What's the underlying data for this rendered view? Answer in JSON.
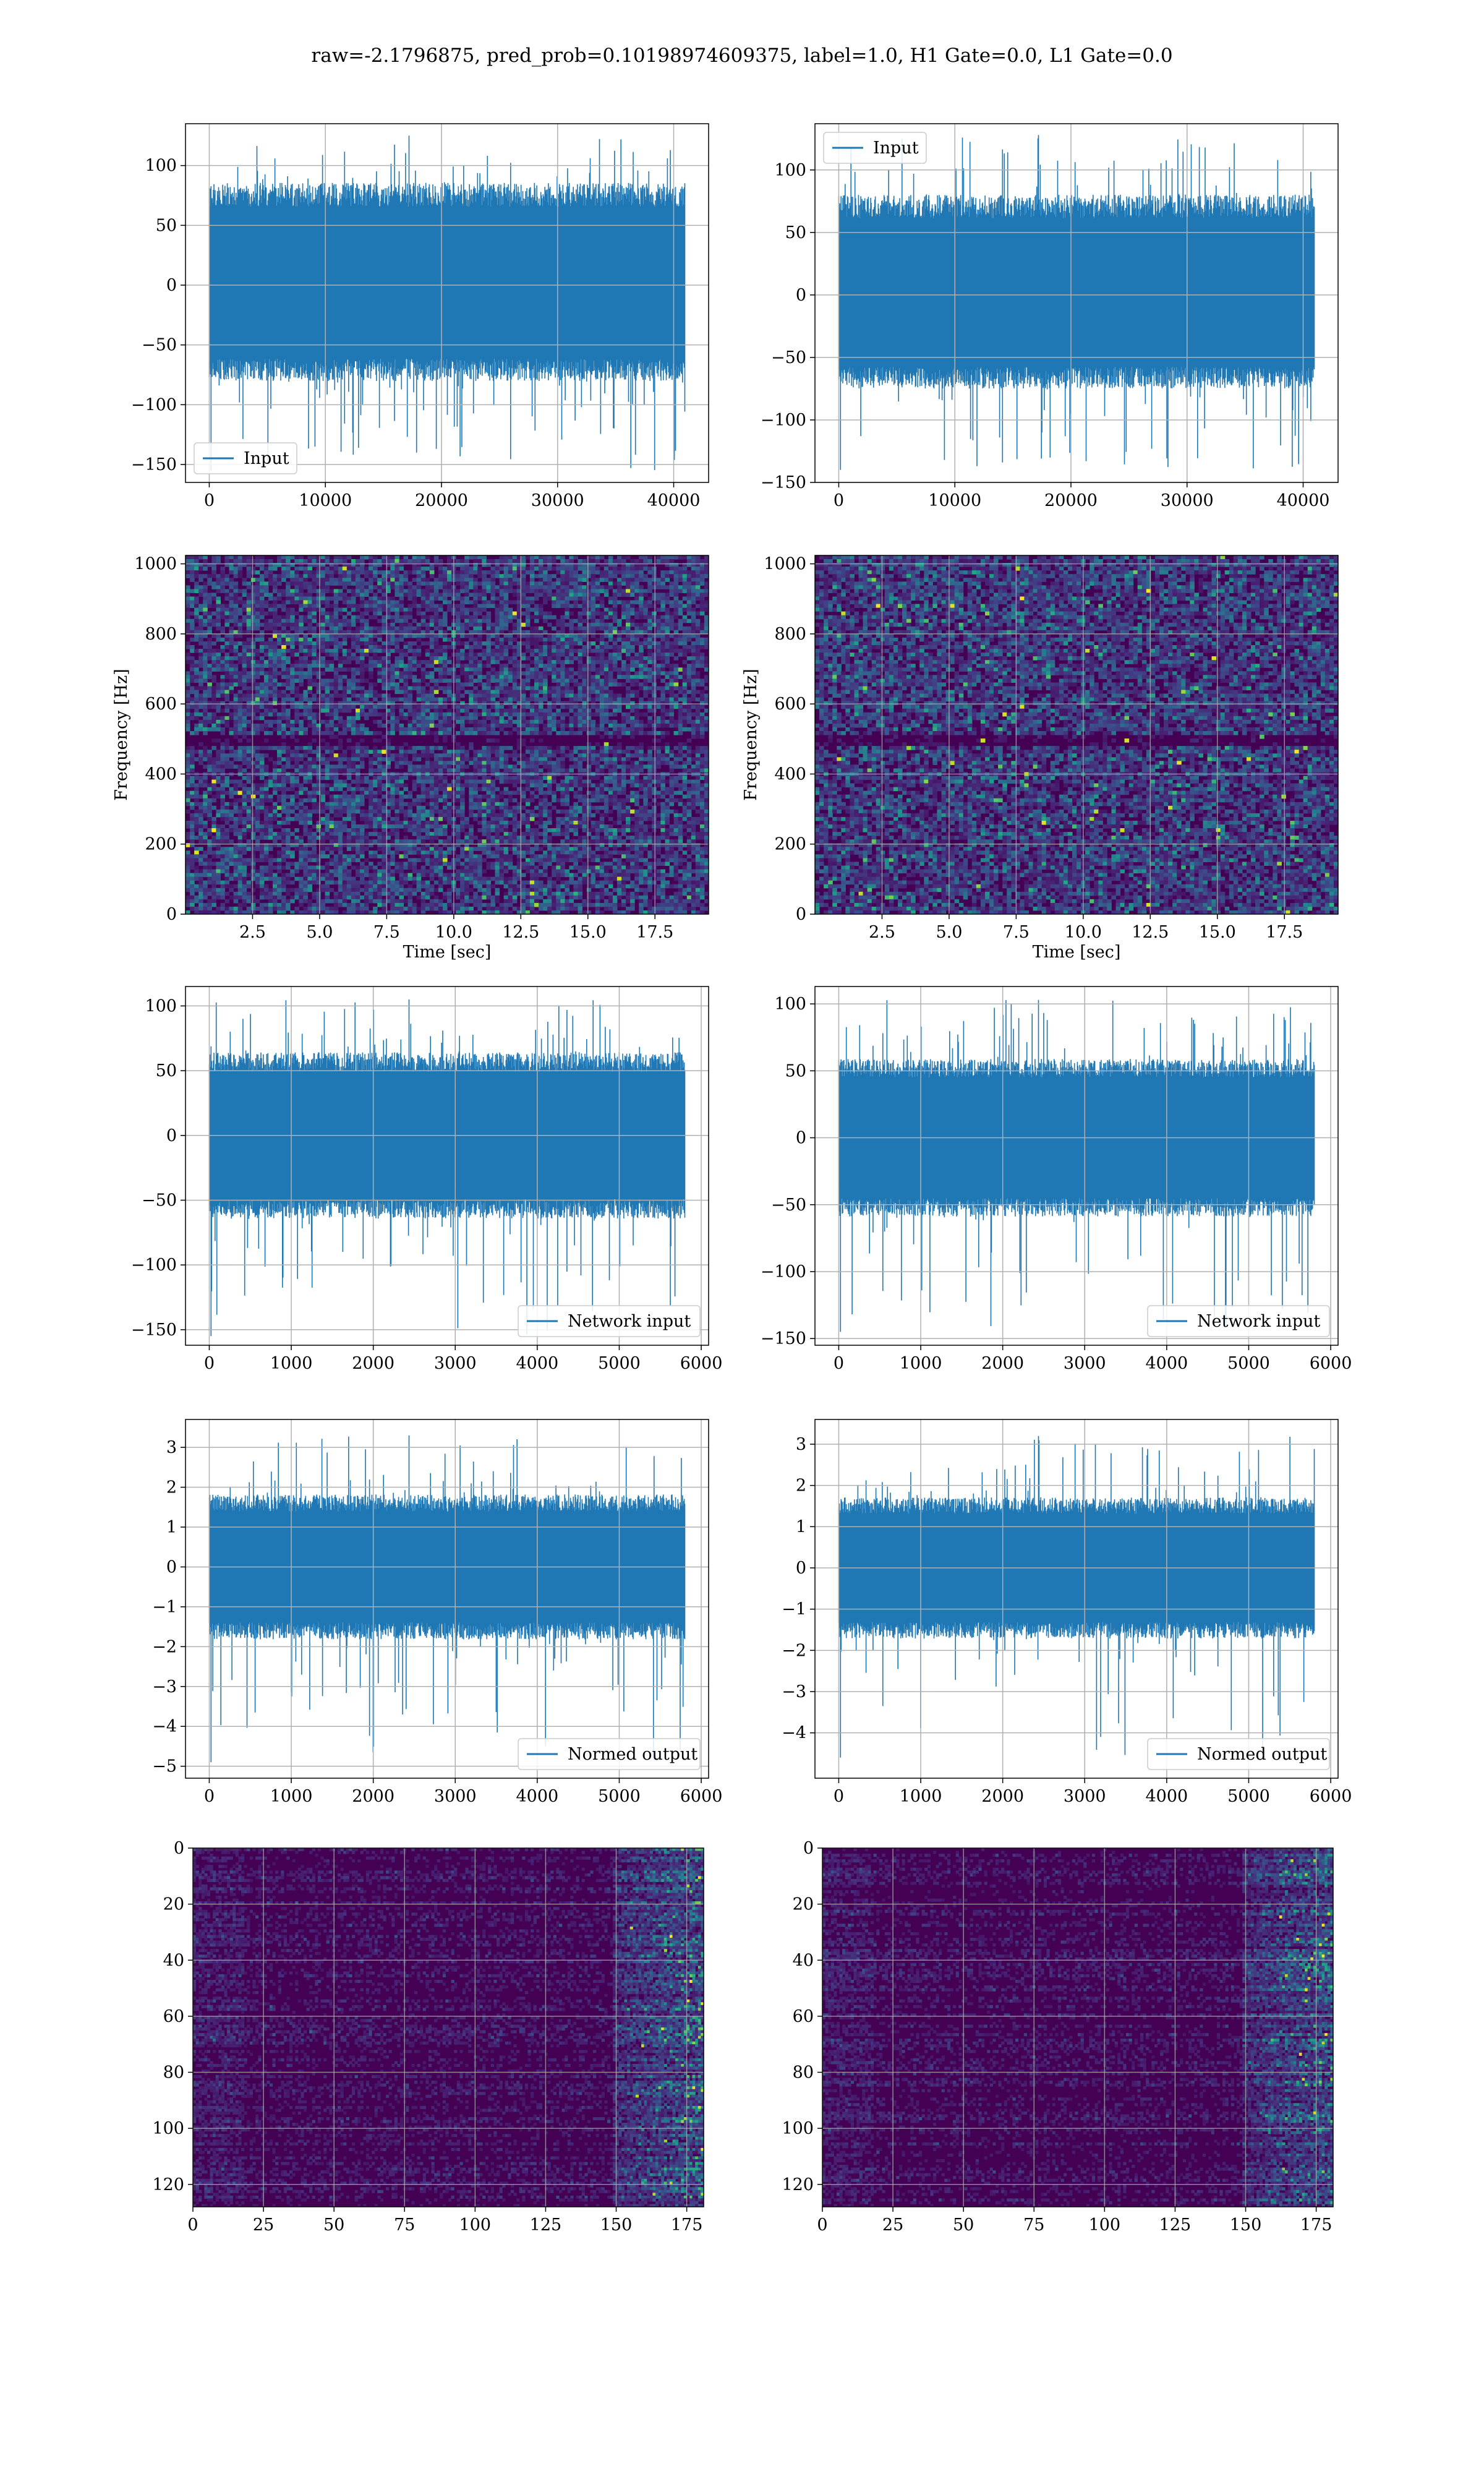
{
  "figure_title": "raw=-2.1796875, pred_prob=0.10198974609375, label=1.0, H1 Gate=0.0, L1 Gate=0.0",
  "colors": {
    "line": "#1f77b4",
    "grid": "#b0b0b0",
    "viridis_low": "#440154",
    "viridis_mid": "#21918c",
    "viridis_high": "#fde725"
  },
  "chart_data": [
    {
      "id": "input-h1",
      "type": "line",
      "title": "",
      "series": [
        {
          "name": "Input",
          "kind": "noise",
          "n": 40960,
          "ylim": [
            -155,
            125
          ],
          "envelope_low": -75,
          "envelope_high": 80
        }
      ],
      "xlim": [
        -2048,
        43008
      ],
      "ylim": [
        -165,
        135
      ],
      "xticks": [
        "0",
        "10000",
        "20000",
        "30000",
        "40000"
      ],
      "xtick_values": [
        0,
        10000,
        20000,
        30000,
        40000
      ],
      "yticks": [
        "−150",
        "−100",
        "−50",
        "0",
        "50",
        "100"
      ],
      "ytick_values": [
        -150,
        -100,
        -50,
        0,
        50,
        100
      ],
      "xlabel": "",
      "ylabel": "",
      "grid": true,
      "legend": "lower left"
    },
    {
      "id": "input-l1",
      "type": "line",
      "title": "",
      "series": [
        {
          "name": "Input",
          "kind": "noise",
          "n": 40960,
          "ylim": [
            -140,
            128
          ],
          "envelope_low": -70,
          "envelope_high": 75
        }
      ],
      "xlim": [
        -2048,
        43008
      ],
      "ylim": [
        -150,
        137
      ],
      "xticks": [
        "0",
        "10000",
        "20000",
        "30000",
        "40000"
      ],
      "xtick_values": [
        0,
        10000,
        20000,
        30000,
        40000
      ],
      "yticks": [
        "−150",
        "−100",
        "−50",
        "0",
        "50",
        "100"
      ],
      "ytick_values": [
        -150,
        -100,
        -50,
        0,
        50,
        100
      ],
      "xlabel": "",
      "ylabel": "",
      "grid": true,
      "legend": "upper left"
    },
    {
      "id": "spectrogram-h1",
      "type": "heatmap",
      "title": "",
      "xlim": [
        0,
        19.5
      ],
      "ylim": [
        0,
        1024
      ],
      "xticks": [
        "2.5",
        "5.0",
        "7.5",
        "10.0",
        "12.5",
        "15.0",
        "17.5"
      ],
      "xtick_values": [
        2.5,
        5.0,
        7.5,
        10.0,
        12.5,
        15.0,
        17.5
      ],
      "yticks": [
        "0",
        "200",
        "400",
        "600",
        "800",
        "1000"
      ],
      "ytick_values": [
        0,
        200,
        400,
        600,
        800,
        1000
      ],
      "xlabel": "Time [sec]",
      "ylabel": "Frequency [Hz]",
      "grid": true,
      "colormap": "viridis"
    },
    {
      "id": "spectrogram-l1",
      "type": "heatmap",
      "title": "",
      "xlim": [
        0,
        19.5
      ],
      "ylim": [
        0,
        1024
      ],
      "xticks": [
        "2.5",
        "5.0",
        "7.5",
        "10.0",
        "12.5",
        "15.0",
        "17.5"
      ],
      "xtick_values": [
        2.5,
        5.0,
        7.5,
        10.0,
        12.5,
        15.0,
        17.5
      ],
      "yticks": [
        "0",
        "200",
        "400",
        "600",
        "800",
        "1000"
      ],
      "ytick_values": [
        0,
        200,
        400,
        600,
        800,
        1000
      ],
      "xlabel": "Time [sec]",
      "ylabel": "Frequency [Hz]",
      "grid": true,
      "colormap": "viridis"
    },
    {
      "id": "network-input-h1",
      "type": "line",
      "title": "",
      "series": [
        {
          "name": "Network input",
          "kind": "noise",
          "n": 5800,
          "ylim": [
            -155,
            105
          ],
          "envelope_low": -60,
          "envelope_high": 60
        }
      ],
      "xlim": [
        -290,
        6090
      ],
      "ylim": [
        -162,
        115
      ],
      "xticks": [
        "0",
        "1000",
        "2000",
        "3000",
        "4000",
        "5000",
        "6000"
      ],
      "xtick_values": [
        0,
        1000,
        2000,
        3000,
        4000,
        5000,
        6000
      ],
      "yticks": [
        "−150",
        "−100",
        "−50",
        "0",
        "50",
        "100"
      ],
      "ytick_values": [
        -150,
        -100,
        -50,
        0,
        50,
        100
      ],
      "xlabel": "",
      "ylabel": "",
      "grid": true,
      "legend": "lower right"
    },
    {
      "id": "network-input-l1",
      "type": "line",
      "title": "",
      "series": [
        {
          "name": "Network input",
          "kind": "noise",
          "n": 5800,
          "ylim": [
            -145,
            103
          ],
          "envelope_low": -55,
          "envelope_high": 55
        }
      ],
      "xlim": [
        -290,
        6090
      ],
      "ylim": [
        -155,
        113
      ],
      "xticks": [
        "0",
        "1000",
        "2000",
        "3000",
        "4000",
        "5000",
        "6000"
      ],
      "xtick_values": [
        0,
        1000,
        2000,
        3000,
        4000,
        5000,
        6000
      ],
      "yticks": [
        "−150",
        "−100",
        "−50",
        "0",
        "50",
        "100"
      ],
      "ytick_values": [
        -150,
        -100,
        -50,
        0,
        50,
        100
      ],
      "xlabel": "",
      "ylabel": "",
      "grid": true,
      "legend": "lower right"
    },
    {
      "id": "normed-output-h1",
      "type": "line",
      "title": "",
      "series": [
        {
          "name": "Normed output",
          "kind": "noise",
          "n": 5800,
          "ylim": [
            -4.9,
            3.3
          ],
          "envelope_low": -1.7,
          "envelope_high": 1.7
        }
      ],
      "xlim": [
        -290,
        6090
      ],
      "ylim": [
        -5.3,
        3.7
      ],
      "xticks": [
        "0",
        "1000",
        "2000",
        "3000",
        "4000",
        "5000",
        "6000"
      ],
      "xtick_values": [
        0,
        1000,
        2000,
        3000,
        4000,
        5000,
        6000
      ],
      "yticks": [
        "−5",
        "−4",
        "−3",
        "−2",
        "−1",
        "0",
        "1",
        "2",
        "3"
      ],
      "ytick_values": [
        -5,
        -4,
        -3,
        -2,
        -1,
        0,
        1,
        2,
        3
      ],
      "xlabel": "",
      "ylabel": "",
      "grid": true,
      "legend": "lower right"
    },
    {
      "id": "normed-output-l1",
      "type": "line",
      "title": "",
      "series": [
        {
          "name": "Normed output",
          "kind": "noise",
          "n": 5800,
          "ylim": [
            -4.6,
            3.2
          ],
          "envelope_low": -1.6,
          "envelope_high": 1.6
        }
      ],
      "xlim": [
        -290,
        6090
      ],
      "ylim": [
        -5.1,
        3.6
      ],
      "xticks": [
        "0",
        "1000",
        "2000",
        "3000",
        "4000",
        "5000",
        "6000"
      ],
      "xtick_values": [
        0,
        1000,
        2000,
        3000,
        4000,
        5000,
        6000
      ],
      "yticks": [
        "−4",
        "−3",
        "−2",
        "−1",
        "0",
        "1",
        "2",
        "3"
      ],
      "ytick_values": [
        -4,
        -3,
        -2,
        -1,
        0,
        1,
        2,
        3
      ],
      "xlabel": "",
      "ylabel": "",
      "grid": true,
      "legend": "lower right"
    },
    {
      "id": "feature-map-h1",
      "type": "heatmap",
      "title": "",
      "xlim": [
        0,
        181
      ],
      "ylim": [
        128,
        0
      ],
      "xticks": [
        "0",
        "25",
        "50",
        "75",
        "100",
        "125",
        "150",
        "175"
      ],
      "xtick_values": [
        0,
        25,
        50,
        75,
        100,
        125,
        150,
        175
      ],
      "yticks": [
        "0",
        "20",
        "40",
        "60",
        "80",
        "100",
        "120"
      ],
      "ytick_values": [
        0,
        20,
        40,
        60,
        80,
        100,
        120
      ],
      "xlabel": "",
      "ylabel": "",
      "grid": true,
      "colormap": "viridis",
      "y_inverted": true
    },
    {
      "id": "feature-map-l1",
      "type": "heatmap",
      "title": "",
      "xlim": [
        0,
        181
      ],
      "ylim": [
        128,
        0
      ],
      "xticks": [
        "0",
        "25",
        "50",
        "75",
        "100",
        "125",
        "150",
        "175"
      ],
      "xtick_values": [
        0,
        25,
        50,
        75,
        100,
        125,
        150,
        175
      ],
      "yticks": [
        "0",
        "20",
        "40",
        "60",
        "80",
        "100",
        "120"
      ],
      "ytick_values": [
        0,
        20,
        40,
        60,
        80,
        100,
        120
      ],
      "xlabel": "",
      "ylabel": "",
      "grid": true,
      "colormap": "viridis",
      "y_inverted": true
    }
  ]
}
